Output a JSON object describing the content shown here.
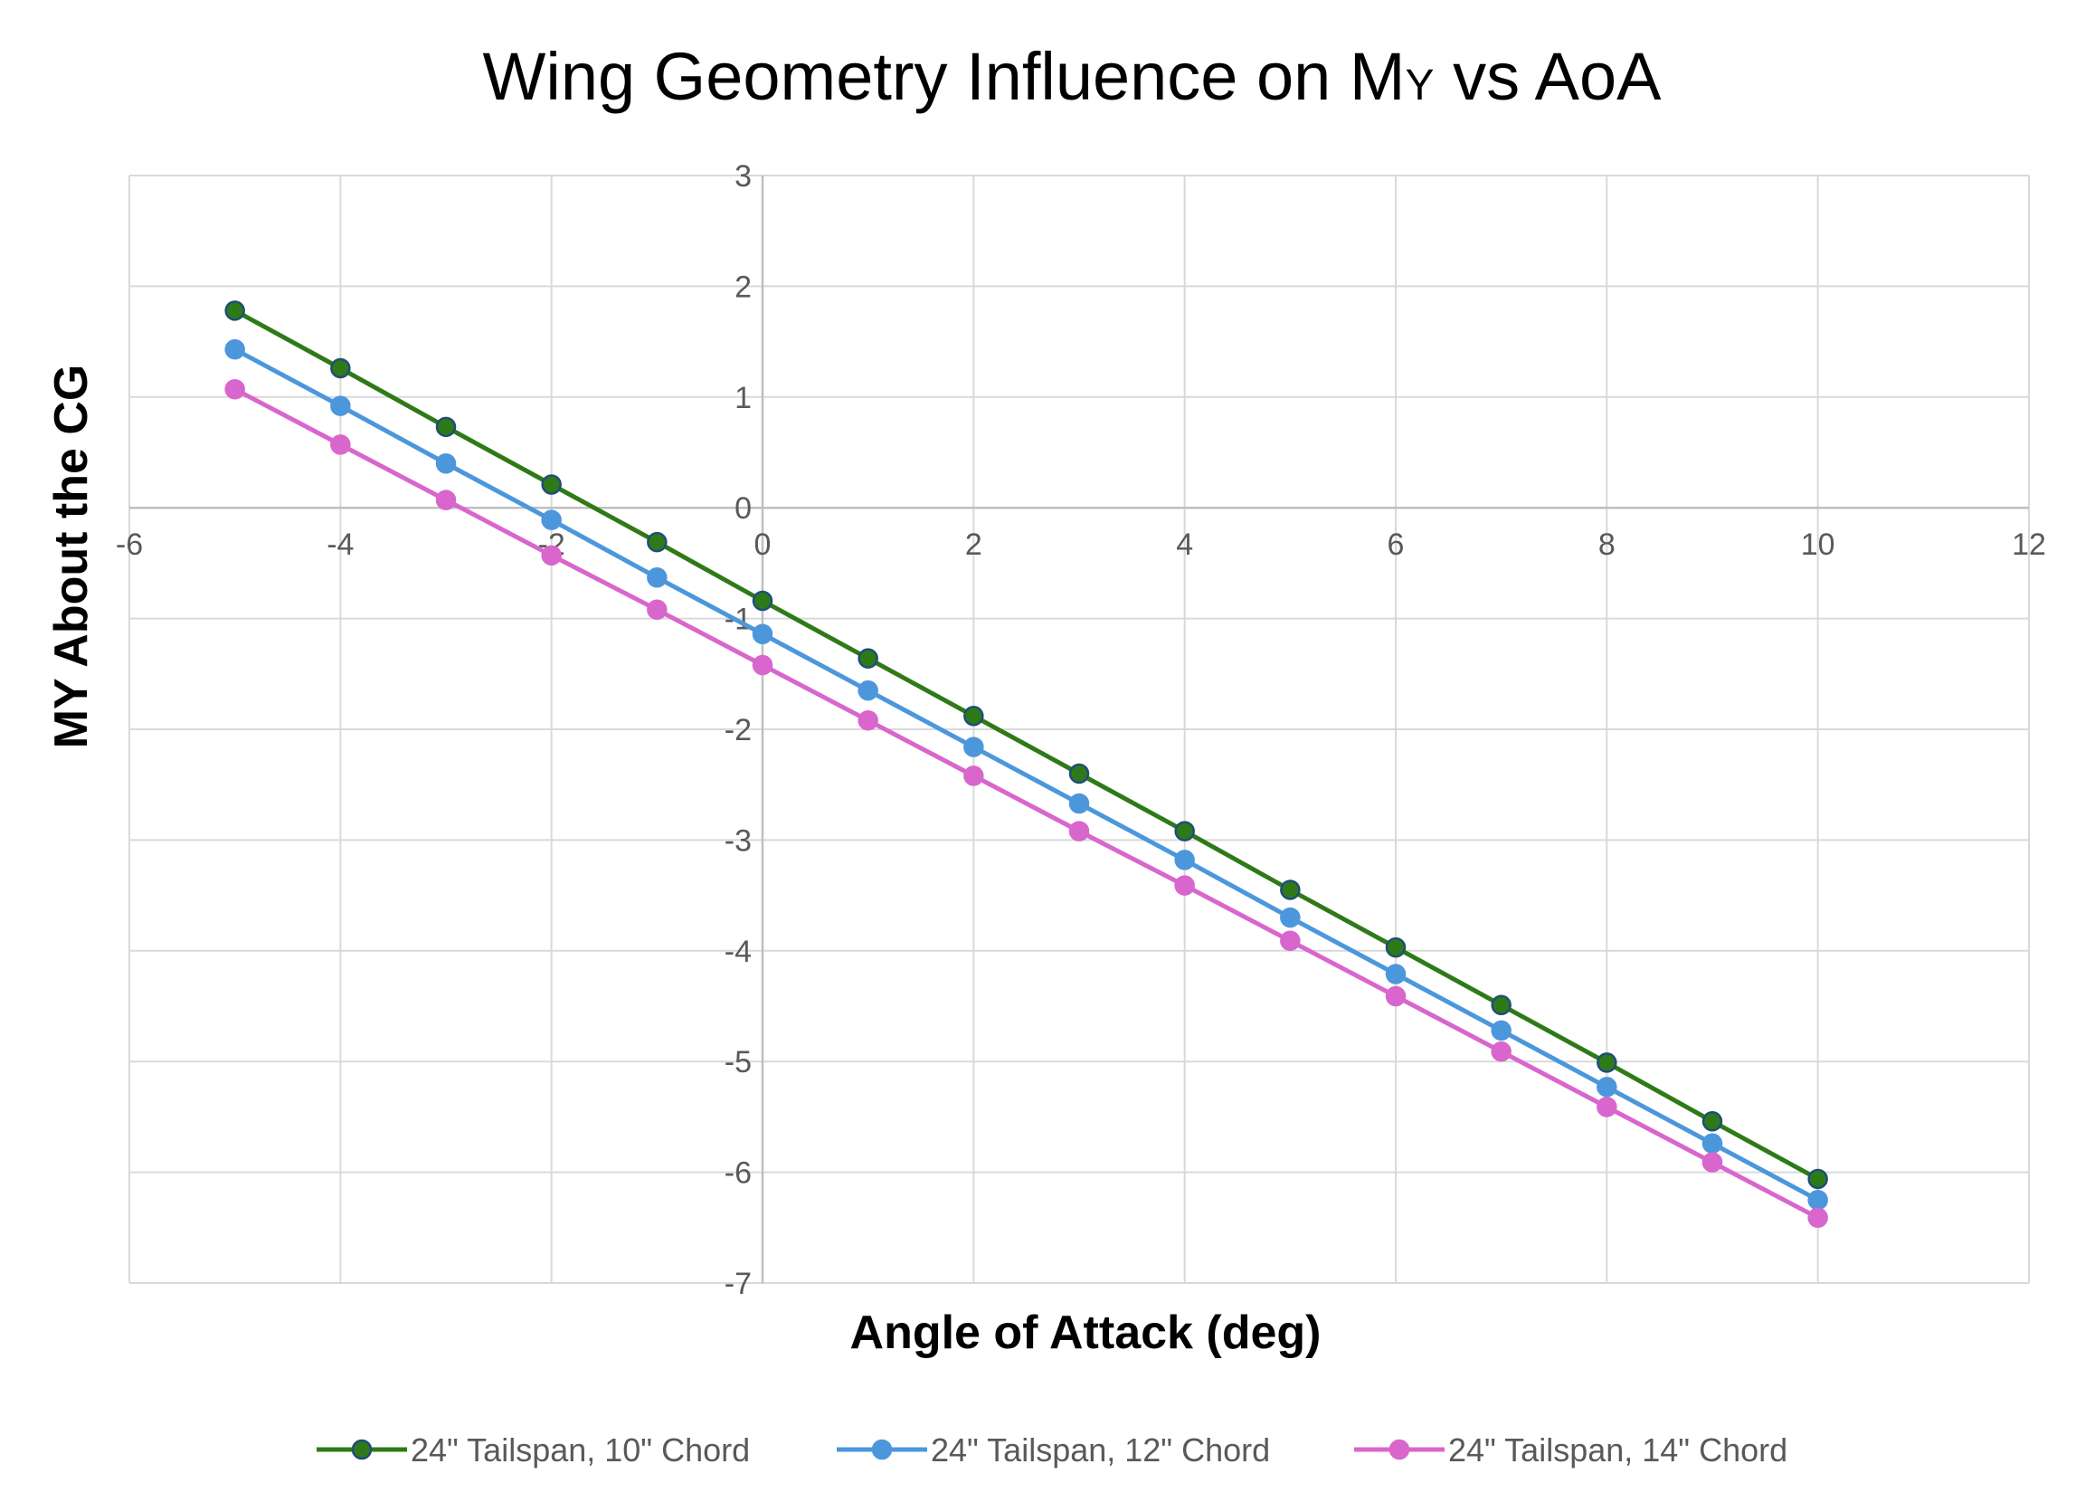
{
  "chart_data": {
    "type": "scatter",
    "title_main": "Wing Geometry Influence on M",
    "title_sub": "Y",
    "title_tail": " vs AoA",
    "xlabel": "Angle of Attack (deg)",
    "ylabel": "MY About the CG",
    "xlim": [
      -6,
      12
    ],
    "ylim": [
      -7,
      3
    ],
    "xticks": [
      -6,
      -4,
      -2,
      0,
      2,
      4,
      6,
      8,
      10,
      12
    ],
    "yticks": [
      -7,
      -6,
      -5,
      -4,
      -3,
      -2,
      -1,
      0,
      1,
      2,
      3
    ],
    "grid": true,
    "legend_position": "bottom",
    "x": [
      -5,
      -4,
      -3,
      -2,
      -1,
      0,
      1,
      2,
      3,
      4,
      5,
      6,
      7,
      8,
      9,
      10
    ],
    "series": [
      {
        "name": "24\" Tailspan, 10\" Chord",
        "color": "#2f7a18",
        "marker_fill": "#2f7a18",
        "marker_stroke": "#1f4e79",
        "values": [
          1.78,
          1.26,
          0.73,
          0.21,
          -0.31,
          -0.84,
          -1.36,
          -1.88,
          -2.4,
          -2.92,
          -3.45,
          -3.97,
          -4.49,
          -5.01,
          -5.54,
          -6.06
        ]
      },
      {
        "name": "24\" Tailspan, 12\" Chord",
        "color": "#4c97dc",
        "marker_fill": "#4c97dc",
        "marker_stroke": "#4c97dc",
        "values": [
          1.43,
          0.92,
          0.4,
          -0.11,
          -0.63,
          -1.14,
          -1.65,
          -2.16,
          -2.67,
          -3.18,
          -3.7,
          -4.21,
          -4.72,
          -5.23,
          -5.74,
          -6.25
        ]
      },
      {
        "name": "24\" Tailspan, 14\" Chord",
        "color": "#d866cc",
        "marker_fill": "#d866cc",
        "marker_stroke": "#d866cc",
        "values": [
          1.07,
          0.57,
          0.07,
          -0.43,
          -0.92,
          -1.42,
          -1.92,
          -2.42,
          -2.92,
          -3.41,
          -3.91,
          -4.41,
          -4.91,
          -5.41,
          -5.91,
          -6.41
        ]
      }
    ]
  }
}
